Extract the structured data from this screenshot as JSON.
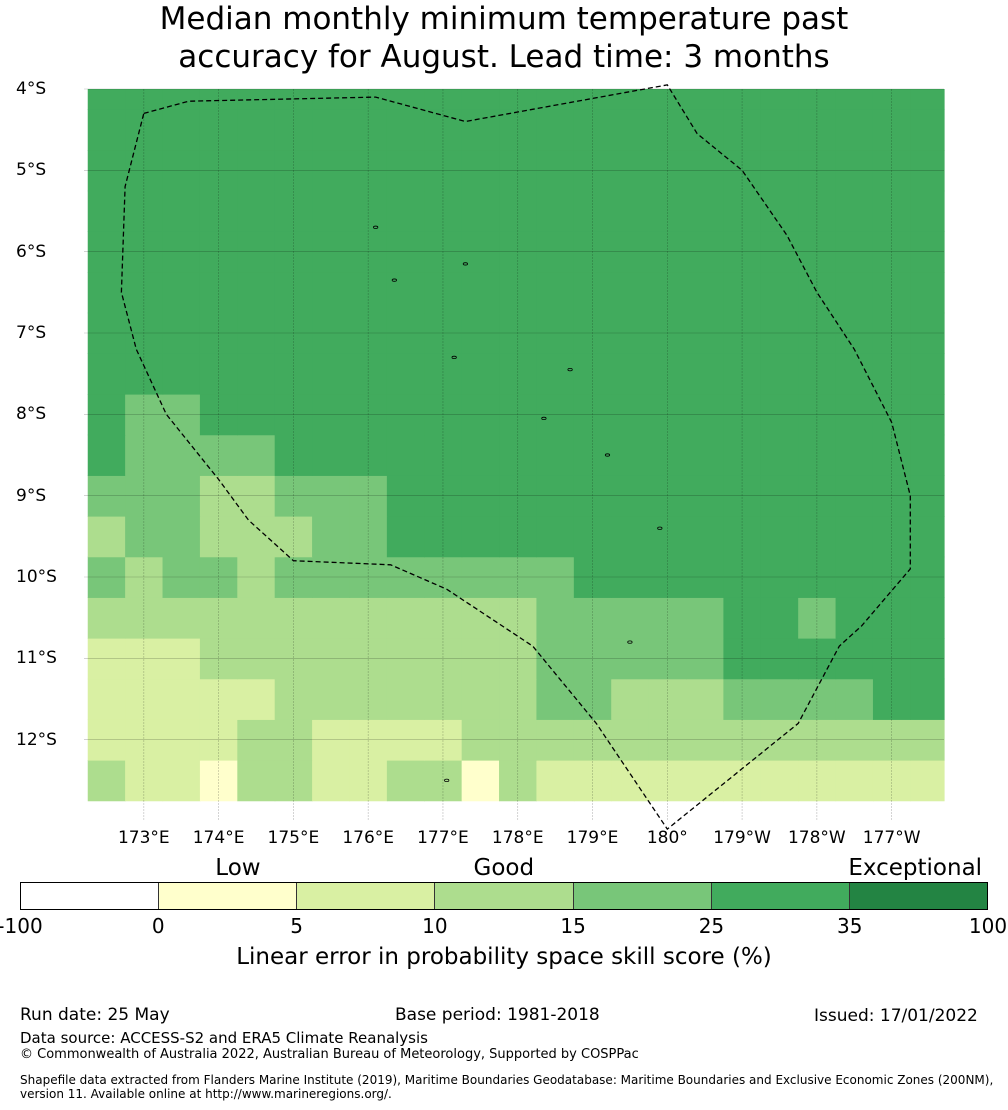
{
  "title_line1": "Median monthly minimum temperature past",
  "title_line2": "accuracy for August. Lead time: 3 months",
  "map": {
    "lon_range": [
      172.2,
      183.7
    ],
    "lat_range": [
      -4.0,
      -13.0
    ],
    "y_ticks": [
      {
        "lat": -4,
        "label": "4°S"
      },
      {
        "lat": -5,
        "label": "5°S"
      },
      {
        "lat": -6,
        "label": "6°S"
      },
      {
        "lat": -7,
        "label": "7°S"
      },
      {
        "lat": -8,
        "label": "8°S"
      },
      {
        "lat": -9,
        "label": "9°S"
      },
      {
        "lat": -10,
        "label": "10°S"
      },
      {
        "lat": -11,
        "label": "11°S"
      },
      {
        "lat": -12,
        "label": "12°S"
      }
    ],
    "x_ticks": [
      {
        "lon": 173,
        "label": "173°E"
      },
      {
        "lon": 174,
        "label": "174°E"
      },
      {
        "lon": 175,
        "label": "175°E"
      },
      {
        "lon": 176,
        "label": "176°E"
      },
      {
        "lon": 177,
        "label": "177°E"
      },
      {
        "lon": 178,
        "label": "178°E"
      },
      {
        "lon": 179,
        "label": "179°E"
      },
      {
        "lon": 180,
        "label": "180°"
      },
      {
        "lon": 181,
        "label": "179°W"
      },
      {
        "lon": 182,
        "label": "178°W"
      },
      {
        "lon": 183,
        "label": "177°W"
      }
    ],
    "eez_boundary": [
      [
        173.0,
        -4.3
      ],
      [
        173.6,
        -4.15
      ],
      [
        176.1,
        -4.1
      ],
      [
        177.3,
        -4.4
      ],
      [
        180.0,
        -3.95
      ],
      [
        180.4,
        -4.55
      ],
      [
        181.0,
        -5.0
      ],
      [
        181.6,
        -5.8
      ],
      [
        182.0,
        -6.5
      ],
      [
        182.5,
        -7.2
      ],
      [
        183.0,
        -8.1
      ],
      [
        183.25,
        -9.0
      ],
      [
        183.25,
        -9.9
      ],
      [
        182.6,
        -10.6
      ],
      [
        182.3,
        -10.85
      ],
      [
        181.75,
        -11.8
      ],
      [
        180.0,
        -13.1
      ],
      [
        179.05,
        -11.8
      ],
      [
        178.2,
        -10.85
      ],
      [
        177.05,
        -10.15
      ],
      [
        176.3,
        -9.85
      ],
      [
        175.0,
        -9.8
      ],
      [
        174.4,
        -9.3
      ],
      [
        174.0,
        -8.8
      ],
      [
        173.3,
        -8.0
      ],
      [
        172.9,
        -7.2
      ],
      [
        172.7,
        -6.5
      ],
      [
        172.75,
        -5.2
      ],
      [
        173.0,
        -4.3
      ]
    ],
    "islands": [
      [
        176.1,
        -5.7
      ],
      [
        177.3,
        -6.15
      ],
      [
        176.35,
        -6.35
      ],
      [
        177.15,
        -7.3
      ],
      [
        178.7,
        -7.45
      ],
      [
        178.35,
        -8.05
      ],
      [
        179.2,
        -8.5
      ],
      [
        179.9,
        -9.4
      ],
      [
        179.5,
        -10.8
      ],
      [
        177.05,
        -12.5
      ]
    ]
  },
  "skill_grid": {
    "lon0": 172.25,
    "lat0": -12.75,
    "dlon": 0.5,
    "dlat": 0.5,
    "rows": [
      [
        3,
        2,
        2,
        1,
        3,
        3,
        2,
        2,
        3,
        3,
        1,
        3,
        2,
        2,
        2,
        2,
        2,
        2,
        2,
        2,
        2,
        2,
        2
      ],
      [
        2,
        2,
        2,
        2,
        3,
        3,
        2,
        2,
        2,
        2,
        3,
        3,
        3,
        3,
        3,
        3,
        3,
        3,
        3,
        3,
        3,
        3,
        3
      ],
      [
        2,
        2,
        2,
        2,
        2,
        3,
        3,
        3,
        3,
        3,
        3,
        3,
        4,
        4,
        3,
        3,
        3,
        4,
        4,
        4,
        4,
        5,
        5
      ],
      [
        2,
        2,
        2,
        3,
        3,
        3,
        3,
        3,
        3,
        3,
        3,
        3,
        4,
        4,
        4,
        4,
        4,
        5,
        5,
        5,
        5,
        5,
        5
      ],
      [
        3,
        3,
        3,
        3,
        3,
        3,
        3,
        3,
        3,
        3,
        3,
        3,
        4,
        4,
        4,
        4,
        4,
        5,
        5,
        4,
        5,
        5,
        5
      ],
      [
        4,
        3,
        4,
        4,
        3,
        4,
        4,
        4,
        4,
        4,
        4,
        4,
        4,
        5,
        5,
        5,
        5,
        5,
        5,
        5,
        5,
        5,
        5
      ],
      [
        3,
        4,
        4,
        3,
        3,
        3,
        4,
        4,
        5,
        5,
        5,
        5,
        5,
        5,
        5,
        5,
        5,
        5,
        5,
        5,
        5,
        5,
        5
      ],
      [
        4,
        4,
        4,
        3,
        3,
        4,
        4,
        4,
        5,
        5,
        5,
        5,
        5,
        5,
        5,
        5,
        5,
        5,
        5,
        5,
        5,
        5,
        5
      ],
      [
        5,
        4,
        4,
        4,
        4,
        5,
        5,
        5,
        5,
        5,
        5,
        5,
        5,
        5,
        5,
        5,
        5,
        5,
        5,
        5,
        5,
        5,
        5
      ],
      [
        5,
        4,
        4,
        5,
        5,
        5,
        5,
        5,
        5,
        5,
        5,
        5,
        5,
        5,
        5,
        5,
        5,
        5,
        5,
        5,
        5,
        5,
        5
      ],
      [
        5,
        5,
        5,
        5,
        5,
        5,
        5,
        5,
        5,
        5,
        5,
        5,
        5,
        5,
        5,
        5,
        5,
        5,
        5,
        5,
        5,
        5,
        5
      ],
      [
        5,
        5,
        5,
        5,
        5,
        5,
        5,
        5,
        5,
        5,
        5,
        5,
        5,
        5,
        5,
        5,
        5,
        5,
        5,
        5,
        5,
        5,
        5
      ],
      [
        5,
        5,
        5,
        5,
        5,
        5,
        5,
        5,
        5,
        5,
        5,
        5,
        5,
        5,
        5,
        5,
        5,
        5,
        5,
        5,
        5,
        5,
        5
      ],
      [
        5,
        5,
        5,
        5,
        5,
        5,
        5,
        5,
        5,
        5,
        5,
        5,
        5,
        5,
        5,
        5,
        5,
        5,
        5,
        5,
        5,
        5,
        5
      ],
      [
        5,
        5,
        5,
        5,
        5,
        5,
        5,
        5,
        5,
        5,
        5,
        5,
        5,
        5,
        5,
        5,
        5,
        5,
        5,
        5,
        5,
        5,
        5
      ],
      [
        5,
        5,
        5,
        5,
        5,
        5,
        5,
        5,
        5,
        5,
        5,
        5,
        5,
        5,
        5,
        5,
        5,
        5,
        5,
        5,
        5,
        5,
        5
      ],
      [
        5,
        5,
        5,
        5,
        5,
        5,
        5,
        5,
        5,
        5,
        5,
        5,
        5,
        5,
        5,
        5,
        5,
        5,
        5,
        5,
        5,
        5,
        5
      ],
      [
        5,
        5,
        5,
        5,
        5,
        5,
        5,
        5,
        5,
        5,
        5,
        5,
        5,
        5,
        5,
        5,
        5,
        5,
        5,
        5,
        5,
        5,
        5
      ],
      [
        5,
        5,
        5,
        5,
        5,
        5,
        5,
        5,
        5,
        5,
        5,
        5,
        5,
        5,
        5,
        5,
        5,
        5,
        5,
        5,
        5,
        5,
        5
      ]
    ]
  },
  "legend": {
    "categories": [
      {
        "label": "Low",
        "at": 0.225
      },
      {
        "label": "Good",
        "at": 0.5
      },
      {
        "label": "Exceptional",
        "at": 0.925
      }
    ],
    "colors": [
      "#ffffff",
      "#ffffcc",
      "#d9f0a3",
      "#addd8e",
      "#78c679",
      "#41ab5d",
      "#238443"
    ],
    "ticks": [
      "-100",
      "0",
      "5",
      "10",
      "15",
      "25",
      "35",
      "100"
    ],
    "label": "Linear error in probability space skill score (%)"
  },
  "footer": {
    "run_date": "Run date: 25 May",
    "base_period": "Base period: 1981-2018",
    "issued": "Issued: 17/01/2022",
    "data_source": "Data source: ACCESS-S2 and ERA5 Climate Reanalysis",
    "copyright": "© Commonwealth of Australia 2022, Australian Bureau of Meteorology, Supported by COSPPac",
    "shapefile_line1": "Shapefile data extracted from Flanders Marine Institute (2019), Maritime Boundaries Geodatabase: Maritime Boundaries and Exclusive Economic Zones (200NM),",
    "shapefile_line2": "version 11. Available online at http://www.marineregions.org/."
  }
}
